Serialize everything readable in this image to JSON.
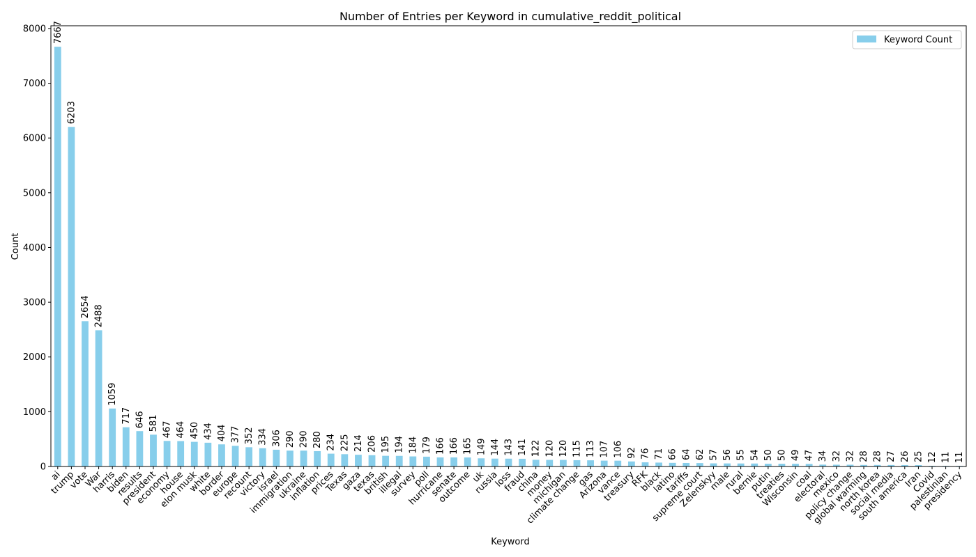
{
  "chart_data": {
    "type": "bar",
    "title": "Number of Entries per Keyword in cumulative_reddit_political",
    "xlabel": "Keyword",
    "ylabel": "Count",
    "ylim": [
      0,
      8050
    ],
    "yticks": [
      0,
      1000,
      2000,
      3000,
      4000,
      5000,
      6000,
      7000,
      8000
    ],
    "grid": false,
    "legend_position": "top-right",
    "bar_color": "#87ceeb",
    "series": [
      {
        "name": "Keyword Count",
        "values": [
          7667,
          6203,
          2654,
          2488,
          1059,
          717,
          646,
          581,
          467,
          464,
          450,
          434,
          404,
          377,
          352,
          334,
          306,
          290,
          290,
          280,
          234,
          225,
          214,
          206,
          195,
          194,
          184,
          179,
          166,
          166,
          165,
          149,
          144,
          143,
          141,
          122,
          120,
          120,
          115,
          113,
          107,
          106,
          92,
          76,
          71,
          66,
          64,
          62,
          57,
          56,
          55,
          54,
          50,
          50,
          49,
          47,
          34,
          32,
          32,
          28,
          28,
          27,
          26,
          25,
          12,
          11,
          11
        ]
      }
    ],
    "categories": [
      "ai",
      "trump",
      "vote",
      "War",
      "harris",
      "biden",
      "results",
      "president",
      "economy",
      "house",
      "elon musk",
      "white",
      "border",
      "europe",
      "recount",
      "victory",
      "israel",
      "immigration",
      "ukraine",
      "inflation",
      "prices",
      "Texas",
      "gaza",
      "texas",
      "british",
      "illegal",
      "survey",
      "poll",
      "hurricane",
      "senate",
      "outcome",
      "uk",
      "russia",
      "loss",
      "fraud",
      "china",
      "money",
      "michigan",
      "climate change",
      "gas",
      "Arizona",
      "vance",
      "treasury",
      "RFK",
      "black",
      "latino",
      "tariffs",
      "supreme court",
      "Zelenskyy",
      "male",
      "rural",
      "bernie",
      "putin",
      "treaties",
      "Wisconsin",
      "coal",
      "electoral",
      "mexico",
      "policy change",
      "global warming",
      "north korea",
      "social media",
      "south america",
      "Iran",
      "Covid",
      "palestinian",
      "presidency"
    ]
  }
}
